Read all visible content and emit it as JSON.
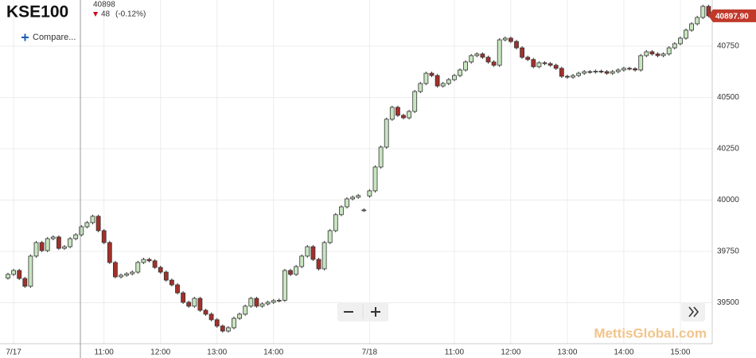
{
  "chart_data": {
    "type": "candlestick",
    "title": "KSE100",
    "last_price": 40898,
    "change": 48,
    "change_pct": "(-0.12%)",
    "compare_button": "Compare...",
    "watermark": "MettisGlobal.com",
    "price_label": {
      "value": 40897.9,
      "label": "40897.90"
    },
    "up_color": "#c8e6c0",
    "down_color": "#a4302a",
    "price_label_color": "#c0392b",
    "categories": [
      null,
      "7/17",
      null,
      null,
      null,
      null,
      null,
      null,
      null,
      null,
      null,
      null,
      null,
      null,
      null,
      null,
      null,
      "11:00",
      null,
      null,
      null,
      null,
      null,
      null,
      null,
      null,
      null,
      "12:00",
      null,
      null,
      null,
      null,
      null,
      null,
      null,
      null,
      null,
      "13:00",
      null,
      null,
      null,
      null,
      null,
      null,
      null,
      null,
      null,
      "14:00",
      null,
      null,
      null,
      null,
      null,
      null,
      null,
      null,
      null,
      null,
      null,
      null,
      null,
      null,
      null,
      null,
      "7/18",
      null,
      null,
      null,
      null,
      null,
      null,
      null,
      null,
      null,
      null,
      null,
      null,
      null,
      null,
      "11:00",
      null,
      null,
      null,
      null,
      null,
      null,
      null,
      null,
      null,
      "12:00",
      null,
      null,
      null,
      null,
      null,
      null,
      null,
      null,
      null,
      "13:00",
      null,
      null,
      null,
      null,
      null,
      null,
      null,
      null,
      null,
      "14:00",
      null,
      null,
      null,
      null,
      null,
      null,
      null,
      null,
      null,
      "15:00",
      null,
      null,
      null,
      null,
      null
    ],
    "open": [
      39620,
      39638,
      39657,
      39618,
      39580,
      39727,
      39793,
      39754,
      39812,
      39820,
      39765,
      39773,
      39812,
      39831,
      39870,
      39890,
      39921,
      39851,
      39793,
      39696,
      39626,
      39634,
      39641,
      39649,
      39696,
      39711,
      39704,
      39672,
      39649,
      39610,
      39587,
      39548,
      39502,
      39483,
      39521,
      39463,
      39444,
      39417,
      39386,
      39362,
      39378,
      39424,
      39444,
      39483,
      39521,
      39483,
      39494,
      39502,
      39510,
      39512,
      39657,
      39638,
      39676,
      39727,
      39773,
      39711,
      39665,
      39793,
      39851,
      39929,
      39967,
      40006,
      40014,
      39950,
      40020,
      40045,
      40161,
      40258,
      40394,
      40452,
      40413,
      40401,
      40432,
      40529,
      40568,
      40618,
      40607,
      40556,
      40568,
      40587,
      40607,
      40634,
      40673,
      40704,
      40712,
      40696,
      40673,
      40657,
      40781,
      40789,
      40773,
      40742,
      40696,
      40685,
      40650,
      40669,
      40665,
      40657,
      40642,
      40603,
      40599,
      40607,
      40618,
      40626,
      40624,
      40628,
      40626,
      40618,
      40626,
      40634,
      40642,
      40640,
      40634,
      40704,
      40723,
      40712,
      40704,
      40712,
      40742,
      40762,
      40789,
      40828,
      40859,
      40890,
      40944
    ],
    "high": [
      39646,
      39665,
      39665,
      39626,
      39735,
      39801,
      39801,
      39820,
      39828,
      39828,
      39781,
      39820,
      39839,
      39878,
      39898,
      39929,
      39929,
      39859,
      39801,
      39704,
      39642,
      39649,
      39657,
      39704,
      39719,
      39719,
      39712,
      39680,
      39657,
      39618,
      39595,
      39556,
      39510,
      39529,
      39529,
      39471,
      39452,
      39425,
      39394,
      39386,
      39432,
      39452,
      39491,
      39529,
      39529,
      39502,
      39510,
      39518,
      39520,
      39665,
      39665,
      39684,
      39735,
      39781,
      39781,
      39719,
      39801,
      39859,
      39937,
      39975,
      40014,
      40022,
      40030,
      39960,
      40053,
      40169,
      40266,
      40402,
      40460,
      40460,
      40421,
      40440,
      40537,
      40576,
      40626,
      40626,
      40615,
      40576,
      40595,
      40615,
      40642,
      40681,
      40712,
      40720,
      40720,
      40704,
      40681,
      40789,
      40797,
      40797,
      40781,
      40750,
      40704,
      40693,
      40677,
      40677,
      40673,
      40665,
      40650,
      40611,
      40615,
      40626,
      40634,
      40634,
      40636,
      40636,
      40634,
      40634,
      40642,
      40650,
      40650,
      40648,
      40712,
      40731,
      40731,
      40720,
      40720,
      40750,
      40770,
      40797,
      40836,
      40867,
      40898,
      40952,
      40952
    ],
    "low": [
      39612,
      39630,
      39610,
      39572,
      39572,
      39719,
      39746,
      39746,
      39804,
      39757,
      39757,
      39765,
      39804,
      39823,
      39862,
      39882,
      39843,
      39785,
      39688,
      39618,
      39618,
      39626,
      39633,
      39641,
      39688,
      39696,
      39664,
      39641,
      39602,
      39579,
      39540,
      39494,
      39475,
      39475,
      39455,
      39436,
      39409,
      39378,
      39354,
      39354,
      39370,
      39416,
      39436,
      39475,
      39475,
      39475,
      39486,
      39494,
      39502,
      39504,
      39630,
      39630,
      39668,
      39719,
      39703,
      39657,
      39657,
      39785,
      39843,
      39921,
      39959,
      39998,
      40006,
      39942,
      40012,
      40037,
      40153,
      40250,
      40386,
      40405,
      40393,
      40393,
      40424,
      40521,
      40560,
      40599,
      40548,
      40548,
      40560,
      40579,
      40599,
      40626,
      40665,
      40696,
      40688,
      40665,
      40649,
      40649,
      40773,
      40765,
      40734,
      40688,
      40677,
      40642,
      40642,
      40657,
      40649,
      40634,
      40595,
      40591,
      40591,
      40599,
      40610,
      40616,
      40616,
      40618,
      40610,
      40610,
      40618,
      40626,
      40632,
      40626,
      40626,
      40696,
      40704,
      40696,
      40696,
      40704,
      40734,
      40754,
      40781,
      40820,
      40851,
      40882,
      40890
    ],
    "close": [
      39638,
      39657,
      39618,
      39580,
      39727,
      39793,
      39754,
      39812,
      39820,
      39765,
      39773,
      39812,
      39831,
      39870,
      39890,
      39921,
      39851,
      39793,
      39696,
      39626,
      39634,
      39641,
      39649,
      39696,
      39711,
      39704,
      39672,
      39649,
      39610,
      39587,
      39548,
      39502,
      39483,
      39521,
      39463,
      39444,
      39417,
      39386,
      39362,
      39378,
      39424,
      39444,
      39483,
      39521,
      39483,
      39494,
      39502,
      39510,
      39512,
      39657,
      39638,
      39676,
      39727,
      39773,
      39711,
      39665,
      39793,
      39851,
      39929,
      39967,
      40006,
      40014,
      40022,
      39952,
      40045,
      40161,
      40258,
      40394,
      40452,
      40413,
      40401,
      40432,
      40529,
      40568,
      40618,
      40607,
      40556,
      40568,
      40587,
      40607,
      40634,
      40673,
      40704,
      40712,
      40696,
      40673,
      40657,
      40781,
      40789,
      40773,
      40742,
      40696,
      40685,
      40650,
      40669,
      40665,
      40657,
      40642,
      40603,
      40599,
      40607,
      40618,
      40626,
      40624,
      40628,
      40626,
      40618,
      40626,
      40634,
      40642,
      40640,
      40634,
      40704,
      40723,
      40712,
      40704,
      40712,
      40742,
      40762,
      40789,
      40828,
      40859,
      40890,
      40944,
      40898
    ],
    "ylim": [
      39308,
      40975
    ],
    "yticks": [
      39500,
      39750,
      40000,
      40250,
      40500,
      40750
    ],
    "grid": true
  }
}
